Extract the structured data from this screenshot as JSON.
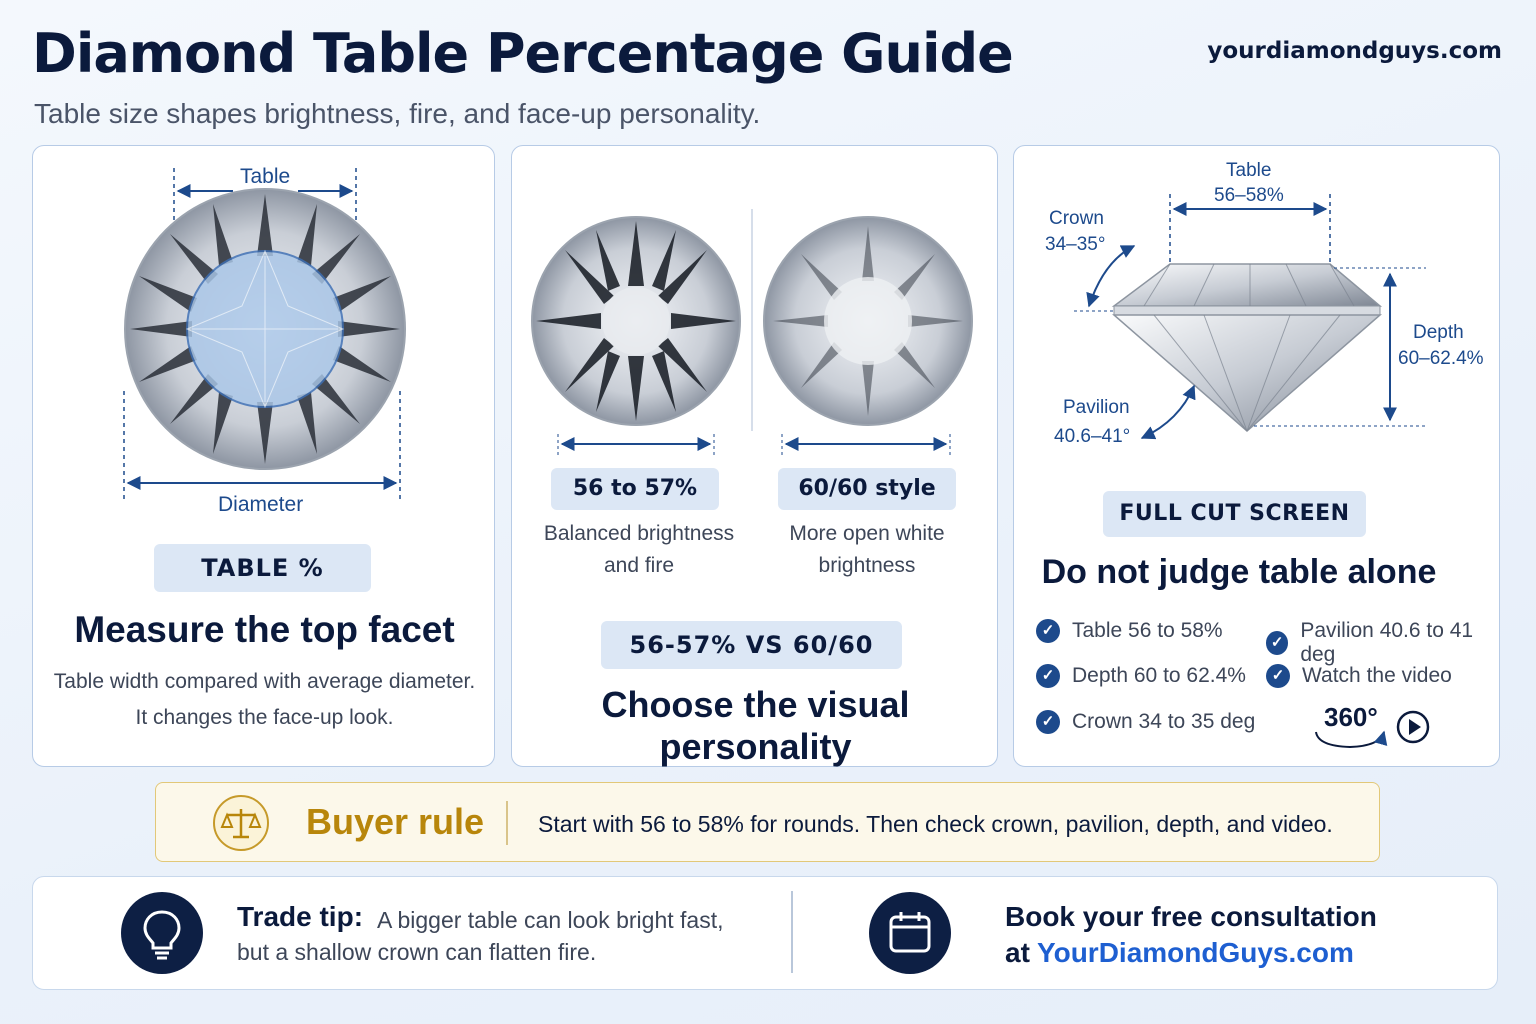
{
  "header": {
    "title": "Diamond Table Percentage Guide",
    "subtitle": "Table size shapes brightness, fire, and face-up personality.",
    "site": "yourdiamondguys.com"
  },
  "card1": {
    "table_label": "Table",
    "diameter_label": "Diameter",
    "pill": "TABLE %",
    "heading": "Measure the top facet",
    "line1": "Table width compared with average diameter.",
    "line2": "It changes the face-up look."
  },
  "card2": {
    "left_pill": "56 to 57%",
    "left_desc1": "Balanced brightness",
    "left_desc2": "and fire",
    "right_pill": "60/60 style",
    "right_desc1": "More open white",
    "right_desc2": "brightness",
    "pill": "56-57% VS 60/60",
    "heading": "Choose the visual personality"
  },
  "card3": {
    "table_label": "Table",
    "table_value": "56–58%",
    "crown_label": "Crown",
    "crown_value": "34–35°",
    "depth_label": "Depth",
    "depth_value": "60–62.4%",
    "pavilion_label": "Pavilion",
    "pavilion_value": "40.6–41°",
    "pill": "FULL CUT SCREEN",
    "heading": "Do not judge table alone",
    "checks": [
      "Table 56 to 58%",
      "Pavilion 40.6 to 41 deg",
      "Depth 60 to 62.4%",
      "Watch the video",
      "Crown 34 to 35 deg"
    ],
    "badge_360": "360°"
  },
  "buyer": {
    "title": "Buyer rule",
    "text": "Start with 56 to 58% for rounds. Then check crown, pavilion, depth, and video."
  },
  "bottom": {
    "tip_label": "Trade tip:",
    "tip_line1": "A bigger table can look bright fast,",
    "tip_line2": "but a shallow crown can flatten fire.",
    "book_line1": "Book your free consultation",
    "book_at": "at",
    "book_link": "YourDiamondGuys.com"
  },
  "colors": {
    "navy": "#0b1a3c",
    "accent_blue": "#1d4a8c",
    "link_blue": "#1e5fd1",
    "gold": "#b8860b"
  },
  "icons": [
    "scale-icon",
    "lightbulb-icon",
    "calendar-icon",
    "play-icon",
    "rotate-360-icon",
    "check-icon"
  ]
}
